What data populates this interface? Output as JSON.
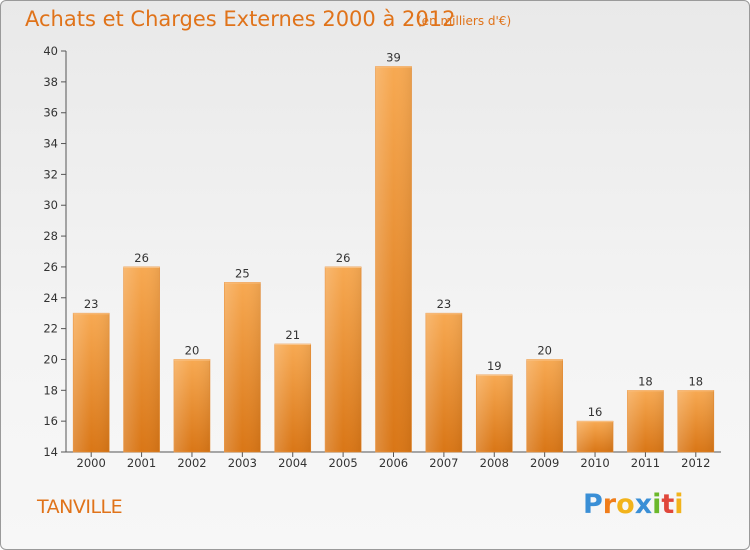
{
  "header": {
    "title": "Achats et Charges Externes 2000 à 2012",
    "subtitle": "(en milliers d'€)"
  },
  "footer": {
    "town": "TANVILLE",
    "logo": {
      "letters": [
        "P",
        "r",
        "o",
        "x",
        "i",
        "t",
        "i"
      ],
      "colors": [
        "#3a8fd6",
        "#f07d1a",
        "#f2b31b",
        "#3a8fd6",
        "#6bb82b",
        "#e0473b",
        "#f2b31b"
      ]
    }
  },
  "chart_data": {
    "type": "bar",
    "title": "Achats et Charges Externes 2000 à 2012",
    "subtitle": "(en milliers d'€)",
    "xlabel": "",
    "ylabel": "",
    "categories": [
      "2000",
      "2001",
      "2002",
      "2003",
      "2004",
      "2005",
      "2006",
      "2007",
      "2008",
      "2009",
      "2010",
      "2011",
      "2012"
    ],
    "values": [
      23,
      26,
      20,
      25,
      21,
      26,
      39,
      23,
      19,
      20,
      16,
      18,
      18
    ],
    "ylim": [
      14,
      40
    ],
    "yticks": [
      14,
      16,
      18,
      20,
      22,
      24,
      26,
      28,
      30,
      32,
      34,
      36,
      38,
      40
    ],
    "grid": false,
    "legend": "none",
    "colors": {
      "bar_light": "#f7a952",
      "bar_dark": "#d97616",
      "text": "#e0731a"
    }
  }
}
